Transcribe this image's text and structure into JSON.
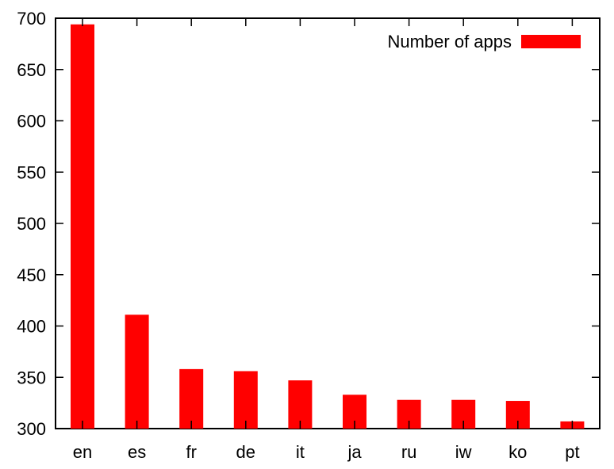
{
  "chart_data": {
    "type": "bar",
    "categories": [
      "en",
      "es",
      "fr",
      "de",
      "it",
      "ja",
      "ru",
      "iw",
      "ko",
      "pt"
    ],
    "series": [
      {
        "name": "Number of apps",
        "values": [
          694,
          411,
          358,
          356,
          347,
          333,
          328,
          328,
          327,
          307
        ],
        "color": "#ff0000"
      }
    ],
    "ylim": [
      300,
      700
    ],
    "yticks": [
      300,
      350,
      400,
      450,
      500,
      550,
      600,
      650,
      700
    ],
    "title": "",
    "xlabel": "",
    "ylabel": "",
    "legend": "top-right",
    "grid": false
  }
}
